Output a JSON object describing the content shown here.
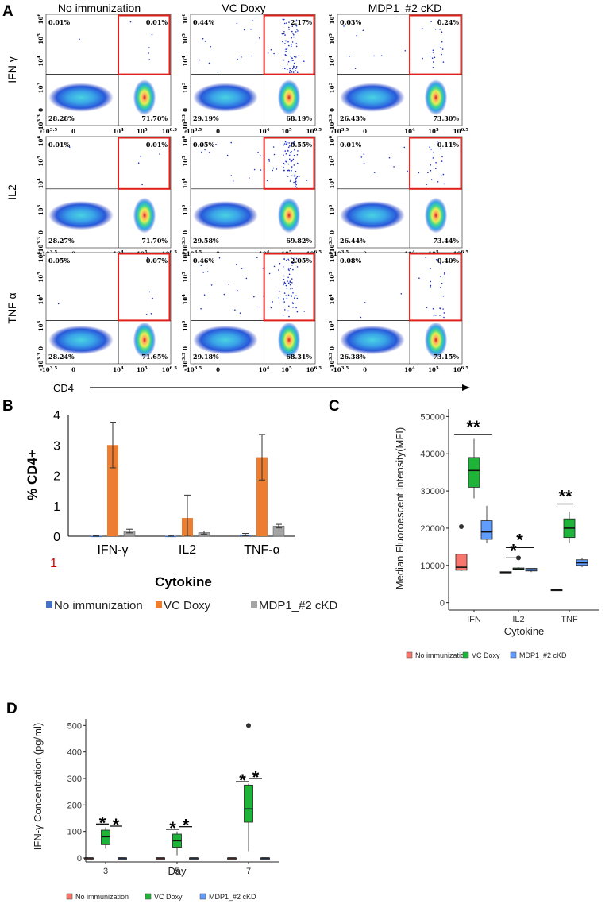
{
  "panel_a": {
    "label": "A",
    "columns": [
      "No immunization",
      "VC Doxy",
      "MDP1_#2 cKD"
    ],
    "rows": [
      "IFN γ",
      "IL2",
      "TNF α"
    ],
    "quadrant_percentages": [
      [
        [
          "0.01%",
          "0.01%",
          "28.28%",
          "71.70%"
        ],
        [
          "0.44%",
          "2.17%",
          "29.19%",
          "68.19%"
        ],
        [
          "0.03%",
          "0.24%",
          "26.43%",
          "73.30%"
        ]
      ],
      [
        [
          "0.01%",
          "0.01%",
          "28.27%",
          "71.70%"
        ],
        [
          "0.05%",
          "0.55%",
          "29.58%",
          "69.82%"
        ],
        [
          "0.01%",
          "0.11%",
          "26.44%",
          "73.44%"
        ]
      ],
      [
        [
          "0.05%",
          "0.07%",
          "28.24%",
          "71.65%"
        ],
        [
          "0.46%",
          "2.05%",
          "29.18%",
          "68.31%"
        ],
        [
          "0.08%",
          "0.40%",
          "26.38%",
          "73.15%"
        ]
      ]
    ],
    "x_ticks": [
      "-10^3.5",
      "0",
      "10^4",
      "10^5",
      "10^6.5"
    ],
    "y_ticks": [
      "-10^3.3",
      "0",
      "10^3",
      "10^4",
      "10^5",
      "10^6"
    ],
    "x_axis_label": "CD4",
    "highlight_color": "#e0201b"
  },
  "chart_data": [
    {
      "id": "B",
      "type": "bar",
      "title": "",
      "xlabel": "Cytokine",
      "ylabel": "% CD4+",
      "ylim": [
        0,
        4
      ],
      "yticks": [
        "0",
        "1",
        "2",
        "3",
        "4"
      ],
      "extra_tick": "1",
      "categories": [
        "IFN-γ",
        "IL2",
        "TNF-α"
      ],
      "series": [
        {
          "name": "No immunization",
          "color": "#4472c4",
          "values": [
            0.01,
            0.01,
            0.05
          ],
          "errors": [
            0.01,
            0.02,
            0.04
          ]
        },
        {
          "name": "VC Doxy",
          "color": "#ed7d31",
          "values": [
            3.0,
            0.6,
            2.6
          ],
          "errors": [
            0.75,
            0.75,
            0.75
          ]
        },
        {
          "name": "MDP1_#2 cKD",
          "color": "#a5a5a5",
          "values": [
            0.17,
            0.12,
            0.33
          ],
          "errors": [
            0.06,
            0.05,
            0.06
          ]
        }
      ],
      "legend_position": "bottom"
    },
    {
      "id": "C",
      "type": "box",
      "xlabel": "Cytokine",
      "ylabel": "Median Fluoroescent Intensity(MFI)",
      "ylim": [
        -2000,
        52000
      ],
      "yticks": [
        0,
        10000,
        20000,
        30000,
        40000,
        50000
      ],
      "categories": [
        "IFN",
        "IL2",
        "TNF"
      ],
      "series": [
        {
          "name": "No immunization",
          "color": "#f8766d",
          "boxes": [
            {
              "min": 8500,
              "q1": 8700,
              "median": 9500,
              "q3": 13000,
              "max": 13000,
              "outliers": [
                20400
              ]
            },
            {
              "min": 8000,
              "q1": 8000,
              "median": 8100,
              "q3": 8300,
              "max": 8300,
              "outliers": []
            },
            {
              "min": 3300,
              "q1": 3300,
              "median": 3400,
              "q3": 3500,
              "max": 3500,
              "outliers": []
            }
          ]
        },
        {
          "name": "VC Doxy",
          "color": "#1eb43a",
          "boxes": [
            {
              "min": 28000,
              "q1": 31000,
              "median": 35500,
              "q3": 39000,
              "max": 44000,
              "outliers": []
            },
            {
              "min": 8700,
              "q1": 8800,
              "median": 9000,
              "q3": 9300,
              "max": 9500,
              "outliers": [
                12000
              ]
            },
            {
              "min": 16000,
              "q1": 17500,
              "median": 20000,
              "q3": 22500,
              "max": 24500,
              "outliers": []
            }
          ]
        },
        {
          "name": "MDP1_#2 cKD",
          "color": "#619cff",
          "boxes": [
            {
              "min": 16000,
              "q1": 17000,
              "median": 19000,
              "q3": 22000,
              "max": 26000,
              "outliers": []
            },
            {
              "min": 8200,
              "q1": 8500,
              "median": 8800,
              "q3": 9200,
              "max": 9300,
              "outliers": []
            },
            {
              "min": 9500,
              "q1": 10000,
              "median": 10700,
              "q3": 11500,
              "max": 12000,
              "outliers": []
            }
          ]
        }
      ],
      "significance": [
        "**",
        "*",
        "*",
        "**"
      ],
      "legend_position": "bottom"
    },
    {
      "id": "D",
      "type": "box",
      "xlabel": "Day",
      "ylabel": "IFN-γ Concentration (pg/ml)",
      "ylim": [
        -15,
        525
      ],
      "yticks": [
        0,
        100,
        200,
        300,
        400,
        500
      ],
      "categories": [
        "3",
        "5",
        "7"
      ],
      "series": [
        {
          "name": "No immunization",
          "color": "#f8766d",
          "boxes": [
            {
              "min": 0,
              "q1": 0,
              "median": 0,
              "q3": 0,
              "max": 0,
              "outliers": []
            },
            {
              "min": 0,
              "q1": 0,
              "median": 0,
              "q3": 0,
              "max": 0,
              "outliers": []
            },
            {
              "min": 0,
              "q1": 0,
              "median": 0,
              "q3": 0,
              "max": 0,
              "outliers": []
            }
          ]
        },
        {
          "name": "VC Doxy",
          "color": "#1eb43a",
          "boxes": [
            {
              "min": 35,
              "q1": 50,
              "median": 80,
              "q3": 105,
              "max": 115,
              "outliers": []
            },
            {
              "min": 10,
              "q1": 40,
              "median": 65,
              "q3": 90,
              "max": 100,
              "outliers": []
            },
            {
              "min": 25,
              "q1": 135,
              "median": 185,
              "q3": 275,
              "max": 280,
              "outliers": [
                500
              ]
            }
          ]
        },
        {
          "name": "MDP1_#2 cKD",
          "color": "#619cff",
          "boxes": [
            {
              "min": 0,
              "q1": 0,
              "median": 0,
              "q3": 0,
              "max": 0,
              "outliers": []
            },
            {
              "min": 0,
              "q1": 0,
              "median": 0,
              "q3": 0,
              "max": 0,
              "outliers": []
            },
            {
              "min": 0,
              "q1": 0,
              "median": 0,
              "q3": 0,
              "max": 0,
              "outliers": []
            }
          ]
        }
      ],
      "significance": [
        "*",
        "*",
        "*",
        "*",
        "*",
        "*"
      ],
      "legend_position": "bottom"
    }
  ],
  "panel_labels": {
    "b": "B",
    "c": "C",
    "d": "D"
  }
}
